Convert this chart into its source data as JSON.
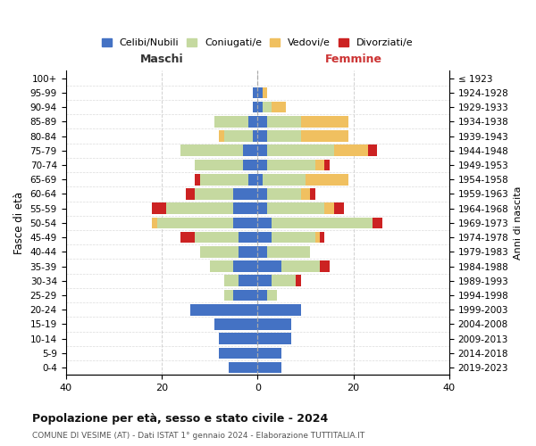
{
  "age_groups": [
    "0-4",
    "5-9",
    "10-14",
    "15-19",
    "20-24",
    "25-29",
    "30-34",
    "35-39",
    "40-44",
    "45-49",
    "50-54",
    "55-59",
    "60-64",
    "65-69",
    "70-74",
    "75-79",
    "80-84",
    "85-89",
    "90-94",
    "95-99",
    "100+"
  ],
  "birth_years": [
    "2019-2023",
    "2014-2018",
    "2009-2013",
    "2004-2008",
    "1999-2003",
    "1994-1998",
    "1989-1993",
    "1984-1988",
    "1979-1983",
    "1974-1978",
    "1969-1973",
    "1964-1968",
    "1959-1963",
    "1954-1958",
    "1949-1953",
    "1944-1948",
    "1939-1943",
    "1934-1938",
    "1929-1933",
    "1924-1928",
    "≤ 1923"
  ],
  "colors": {
    "celibi": "#4472c4",
    "coniugati": "#c5d9a0",
    "vedovi": "#f0c060",
    "divorziati": "#cc2222"
  },
  "males": {
    "celibi": [
      6,
      8,
      8,
      9,
      14,
      5,
      4,
      5,
      4,
      4,
      5,
      5,
      5,
      2,
      3,
      3,
      1,
      2,
      1,
      1,
      0
    ],
    "coniugati": [
      0,
      0,
      0,
      0,
      0,
      2,
      3,
      5,
      8,
      9,
      16,
      14,
      8,
      10,
      10,
      13,
      6,
      7,
      0,
      0,
      0
    ],
    "vedovi": [
      0,
      0,
      0,
      0,
      0,
      0,
      0,
      0,
      0,
      0,
      1,
      0,
      0,
      0,
      0,
      0,
      1,
      0,
      0,
      0,
      0
    ],
    "divorziati": [
      0,
      0,
      0,
      0,
      0,
      0,
      0,
      0,
      0,
      3,
      0,
      3,
      2,
      1,
      0,
      0,
      0,
      0,
      0,
      0,
      0
    ]
  },
  "females": {
    "celibi": [
      5,
      5,
      7,
      7,
      9,
      2,
      3,
      5,
      2,
      3,
      3,
      2,
      2,
      1,
      2,
      2,
      2,
      2,
      1,
      1,
      0
    ],
    "coniugati": [
      0,
      0,
      0,
      0,
      0,
      2,
      5,
      8,
      9,
      9,
      21,
      12,
      7,
      9,
      10,
      14,
      7,
      7,
      2,
      0,
      0
    ],
    "vedovi": [
      0,
      0,
      0,
      0,
      0,
      0,
      0,
      0,
      0,
      1,
      0,
      2,
      2,
      9,
      2,
      7,
      10,
      10,
      3,
      1,
      0
    ],
    "divorziati": [
      0,
      0,
      0,
      0,
      0,
      0,
      1,
      2,
      0,
      1,
      2,
      2,
      1,
      0,
      1,
      2,
      0,
      0,
      0,
      0,
      0
    ]
  },
  "xlim": [
    -40,
    40
  ],
  "title": "Popolazione per età, sesso e stato civile - 2024",
  "subtitle": "COMUNE DI VESIME (AT) - Dati ISTAT 1° gennaio 2024 - Elaborazione TUTTITALIA.IT",
  "ylabel_left": "Fasce di età",
  "ylabel_right": "Anni di nascita",
  "xlabel_left": "Maschi",
  "xlabel_right": "Femmine",
  "legend_labels": [
    "Celibi/Nubili",
    "Coniugati/e",
    "Vedovi/e",
    "Divorziati/e"
  ],
  "background_color": "#ffffff",
  "grid_color": "#cccccc"
}
